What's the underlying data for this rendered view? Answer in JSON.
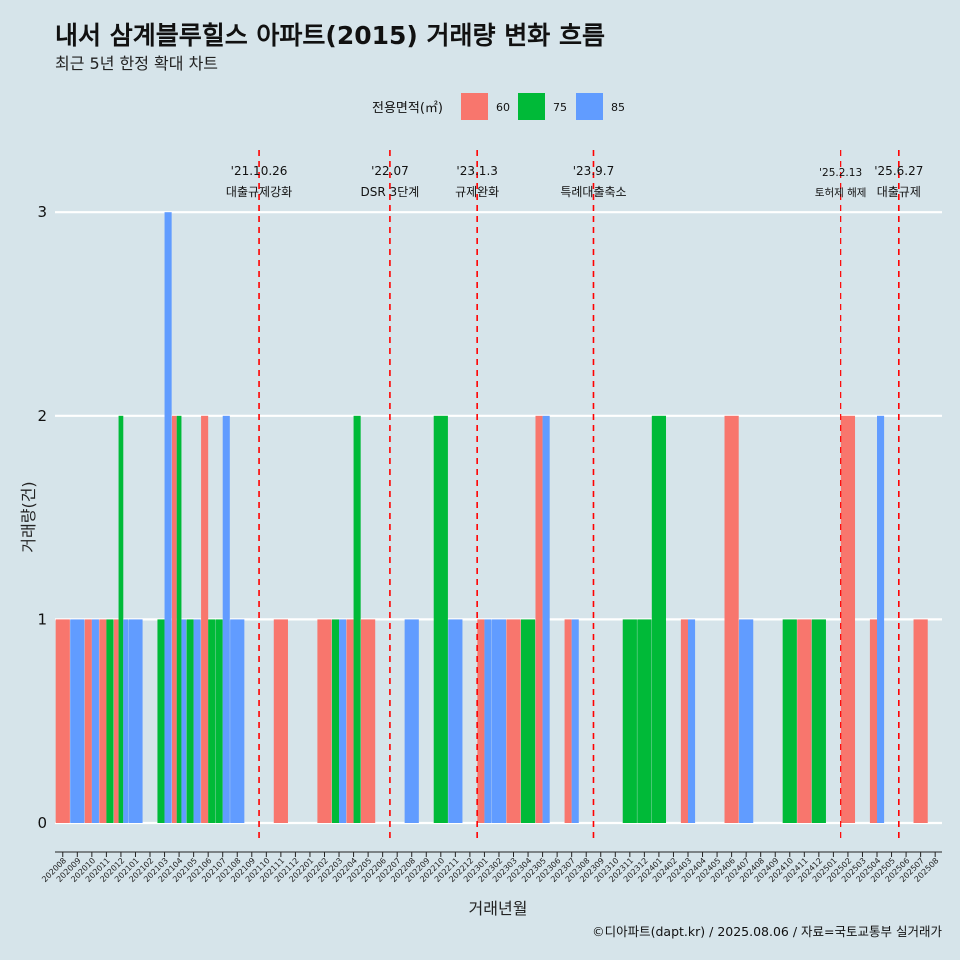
{
  "chart_data": {
    "type": "bar",
    "title": "내서 삼계블루힐스 아파트(2015) 거래량 변화 흐름",
    "subtitle": "최근 5년 한정 확대 차트",
    "xlabel": "거래년월",
    "ylabel": "거래량(건)",
    "ylim": [
      0,
      3
    ],
    "y_ticks": [
      "0",
      "1",
      "2",
      "3"
    ],
    "grid": true,
    "legend": {
      "title": "전용면적(㎡)",
      "position": "top",
      "entries": [
        {
          "name": "60",
          "color": "#f8766d"
        },
        {
          "name": "75",
          "color": "#00ba38"
        },
        {
          "name": "85",
          "color": "#619cff"
        }
      ]
    },
    "categories": [
      "202008",
      "202009",
      "202010",
      "202011",
      "202012",
      "202101",
      "202102",
      "202103",
      "202104",
      "202105",
      "202106",
      "202107",
      "202108",
      "202109",
      "202110",
      "202111",
      "202112",
      "202201",
      "202202",
      "202203",
      "202204",
      "202205",
      "202206",
      "202207",
      "202208",
      "202209",
      "202210",
      "202211",
      "202212",
      "202301",
      "202302",
      "202303",
      "202304",
      "202305",
      "202306",
      "202307",
      "202308",
      "202309",
      "202310",
      "202311",
      "202312",
      "202401",
      "202402",
      "202403",
      "202404",
      "202405",
      "202406",
      "202407",
      "202408",
      "202409",
      "202410",
      "202411",
      "202412",
      "202501",
      "202502",
      "202503",
      "202504",
      "202505",
      "202506",
      "202507",
      "202508"
    ],
    "series": [
      {
        "name": "60",
        "values": [
          1,
          0,
          1,
          1,
          1,
          0,
          0,
          0,
          2,
          0,
          2,
          0,
          0,
          0,
          0,
          1,
          0,
          0,
          1,
          0,
          1,
          1,
          0,
          0,
          0,
          0,
          0,
          0,
          0,
          1,
          0,
          1,
          0,
          2,
          0,
          1,
          0,
          0,
          0,
          0,
          0,
          0,
          0,
          1,
          0,
          0,
          2,
          0,
          0,
          0,
          0,
          1,
          0,
          0,
          2,
          0,
          1,
          0,
          0,
          1,
          0
        ]
      },
      {
        "name": "75",
        "values": [
          0,
          0,
          0,
          1,
          2,
          0,
          0,
          1,
          2,
          1,
          1,
          1,
          0,
          0,
          0,
          0,
          0,
          0,
          0,
          1,
          2,
          0,
          0,
          0,
          0,
          0,
          2,
          0,
          0,
          0,
          0,
          0,
          1,
          0,
          0,
          0,
          0,
          0,
          0,
          1,
          1,
          2,
          0,
          0,
          0,
          0,
          0,
          0,
          0,
          0,
          1,
          0,
          1,
          0,
          0,
          0,
          0,
          0,
          0,
          0,
          0
        ]
      },
      {
        "name": "85",
        "values": [
          0,
          1,
          1,
          0,
          1,
          1,
          0,
          3,
          1,
          1,
          0,
          2,
          1,
          0,
          0,
          0,
          0,
          0,
          0,
          1,
          0,
          0,
          0,
          0,
          1,
          0,
          0,
          1,
          0,
          1,
          1,
          0,
          0,
          2,
          0,
          1,
          0,
          0,
          0,
          0,
          0,
          0,
          0,
          1,
          0,
          0,
          0,
          1,
          0,
          0,
          0,
          0,
          0,
          0,
          0,
          0,
          2,
          0,
          0,
          0,
          0
        ]
      }
    ],
    "annotations": [
      {
        "month": "202110",
        "date": "'21.10.26",
        "label": "대출규제강화",
        "small": false
      },
      {
        "month": "202207",
        "date": "'22.07",
        "label": "DSR 3단계",
        "small": false
      },
      {
        "month": "202301",
        "date": "'23.1.3",
        "label": "규제완화",
        "small": false
      },
      {
        "month": "202309",
        "date": "'23.9.7",
        "label": "특례대출축소",
        "small": false
      },
      {
        "month": "202502",
        "date": "'25.2.13",
        "label": "토허제 해제",
        "small": true
      },
      {
        "month": "202506",
        "date": "'25.6.27",
        "label": "대출규제",
        "small": false
      }
    ],
    "caption": "©디아파트(dapt.kr) / 2025.08.06 / 자료=국토교통부 실거래가"
  }
}
